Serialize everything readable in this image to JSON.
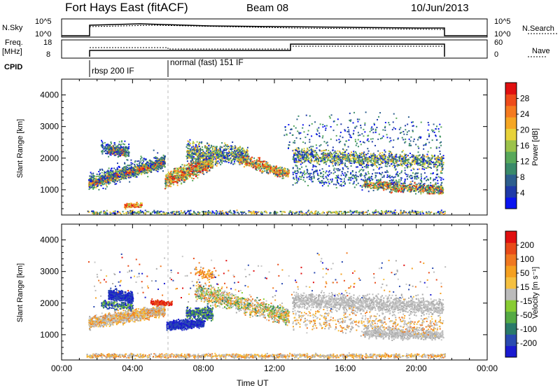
{
  "header": {
    "station": "Fort Hays East (fitACF)",
    "beam": "Beam 08",
    "date": "10/Jun/2013"
  },
  "status_panels": {
    "nsky_label": "N.Sky",
    "nsky_ticks": [
      "10^5",
      "10^0"
    ],
    "nsearch_label": "N.Search",
    "nsearch_ticks": [
      "10^5",
      "10^0"
    ],
    "freq_label_line1": "Freq.",
    "freq_label_line2": "[MHz]",
    "freq_ticks": [
      "18",
      "8"
    ],
    "nave_label": "Nave",
    "nave_ticks": [
      "60",
      "0"
    ],
    "cpid_label": "CPID",
    "cpid_segments": [
      {
        "label": "rbsp 200 IF",
        "start_hour": 1.4,
        "end_hour": 6.0
      },
      {
        "label": "normal (fast) 151 IF",
        "start_hour": 6.0,
        "end_hour": 21.6
      }
    ]
  },
  "chart_data": [
    {
      "type": "heatmap",
      "name": "power",
      "xlabel": "",
      "ylabel": "Slant Range [km]",
      "xlim": [
        0,
        24
      ],
      "ylim": [
        200,
        4500
      ],
      "yticks": [
        "1000",
        "2000",
        "3000",
        "4000"
      ],
      "colorbar_label": "Power [dB]",
      "colorbar_ticks": [
        "4",
        "8",
        "12",
        "16",
        "20",
        "24",
        "28"
      ],
      "colorbar_colors": [
        "#0a14f0",
        "#1f3aa8",
        "#2d5e8e",
        "#3a8a6a",
        "#58a85a",
        "#9cc24a",
        "#e7d23a",
        "#f5a623",
        "#f57a1f",
        "#ee4b1a",
        "#e01010"
      ]
    },
    {
      "type": "heatmap",
      "name": "velocity",
      "xlabel": "Time UT",
      "ylabel": "Slant Range [km]",
      "xlim": [
        0,
        24
      ],
      "ylim": [
        200,
        4500
      ],
      "xticks": [
        "00:00",
        "04:00",
        "08:00",
        "12:00",
        "16:00",
        "20:00",
        "00:00"
      ],
      "yticks": [
        "1000",
        "2000",
        "3000",
        "4000"
      ],
      "colorbar_label": "Velocity [m s⁻¹]",
      "colorbar_ticks": [
        "200",
        "100",
        "50",
        "15",
        "-15",
        "-50",
        "-100",
        "-200"
      ],
      "colorbar_colors": [
        "#1a1ad0",
        "#2a4ab0",
        "#2a7a6a",
        "#55aa44",
        "#88cc33",
        "#bbbbbb",
        "#f5c040",
        "#f5a020",
        "#f07820",
        "#e84a18",
        "#e01010"
      ]
    }
  ]
}
